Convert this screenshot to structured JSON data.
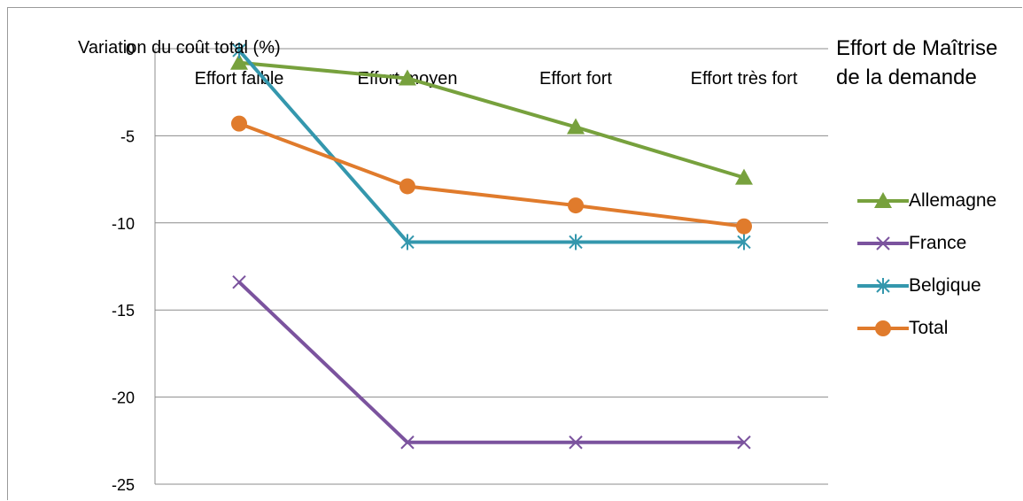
{
  "chart_data": {
    "type": "line",
    "ylabel": "Variation du coût total  (%)",
    "xlabel": "Effort de Maîtrise de la demande",
    "categories": [
      "Effort faible",
      "Effort moyen",
      "Effort fort",
      "Effort très fort"
    ],
    "ylim": [
      -25,
      0
    ],
    "yticks": [
      0,
      -5,
      -10,
      -15,
      -20,
      -25
    ],
    "grid": true,
    "legend_position": "right",
    "series": [
      {
        "name": "Allemagne",
        "values": [
          -0.8,
          -1.7,
          -4.5,
          -7.4
        ],
        "color": "#77a13d",
        "marker": "triangle"
      },
      {
        "name": "France",
        "values": [
          -13.4,
          -22.6,
          -22.6,
          -22.6
        ],
        "color": "#7b539e",
        "marker": "x"
      },
      {
        "name": "Belgique",
        "values": [
          -0.1,
          -11.1,
          -11.1,
          -11.1
        ],
        "color": "#3497ad",
        "marker": "star"
      },
      {
        "name": "Total",
        "values": [
          -4.3,
          -7.9,
          -9.0,
          -10.2
        ],
        "color": "#e07b2c",
        "marker": "circle"
      }
    ]
  }
}
